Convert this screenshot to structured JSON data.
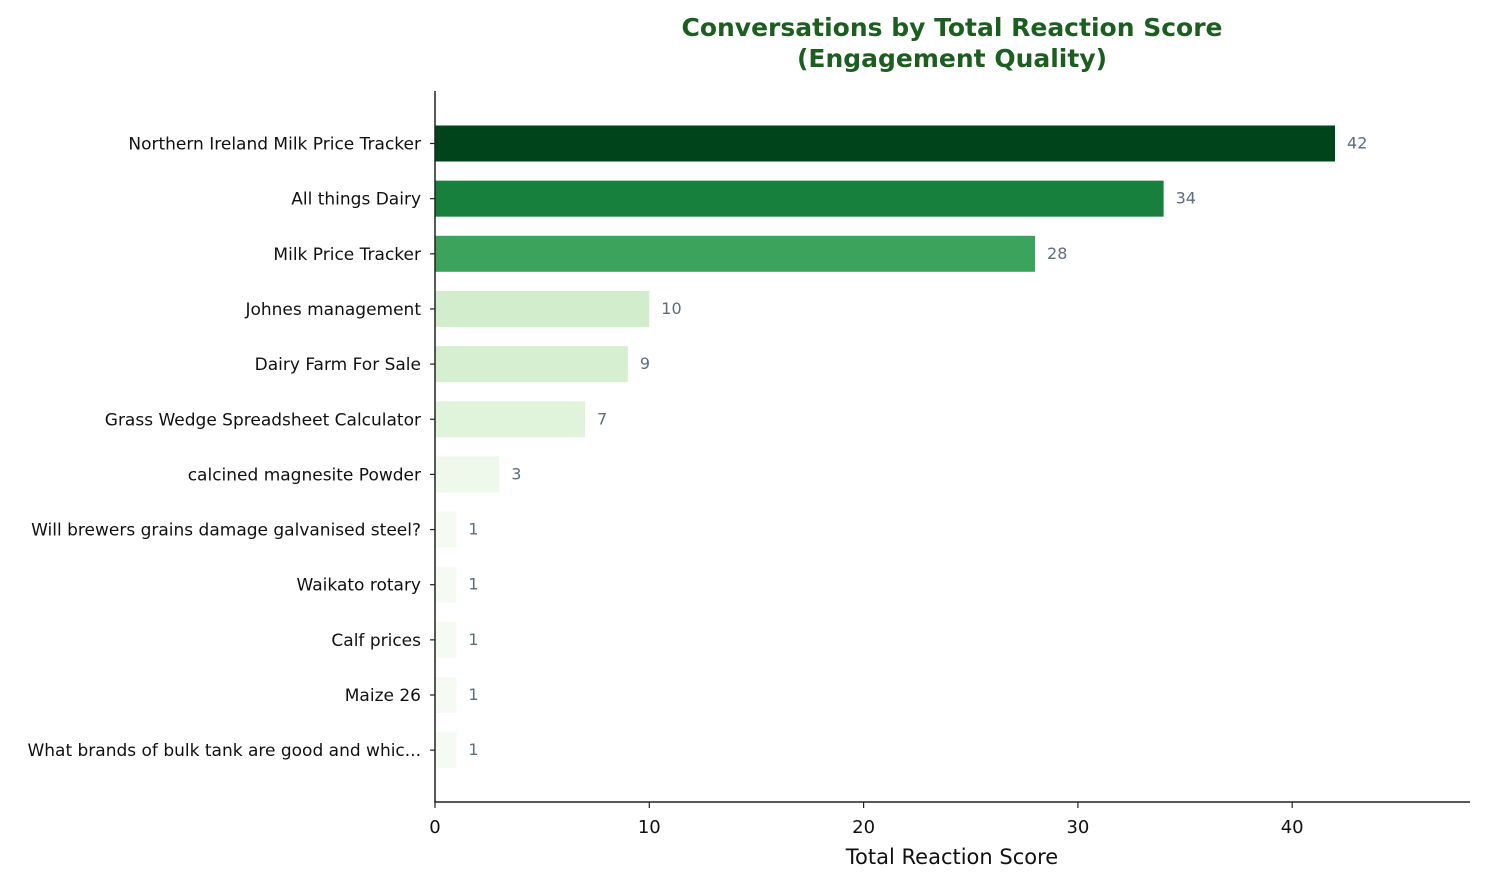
{
  "chart_data": {
    "type": "bar",
    "orientation": "horizontal",
    "title_lines": [
      "Conversations by Total Reaction Score",
      "(Engagement Quality)"
    ],
    "xlabel": "Total Reaction Score",
    "ylabel": "",
    "xlim": [
      0,
      48
    ],
    "xticks": [
      "0",
      "10",
      "20",
      "30",
      "40"
    ],
    "grid": false,
    "categories": [
      "Northern Ireland Milk Price Tracker",
      "All things Dairy",
      "Milk Price Tracker",
      "Johnes management",
      "Dairy Farm For Sale",
      "Grass Wedge Spreadsheet Calculator",
      "calcined magnesite Powder",
      "Will brewers grains damage galvanised steel?",
      "Waikato rotary",
      "Calf prices",
      "Maize 26",
      "What brands of bulk tank are good and whic..."
    ],
    "values": [
      42,
      34,
      28,
      10,
      9,
      7,
      3,
      1,
      1,
      1,
      1,
      1
    ],
    "bar_colors": [
      "#00441b",
      "#16803c",
      "#3ba35b",
      "#d2edcc",
      "#d7efd1",
      "#e0f3db",
      "#eef8eb",
      "#f5fbf2",
      "#f5fbf2",
      "#f5fbf2",
      "#f5fbf2",
      "#f5fbf2"
    ],
    "title_color": "#1b5e20",
    "value_label_color": "#5a6e7e"
  }
}
